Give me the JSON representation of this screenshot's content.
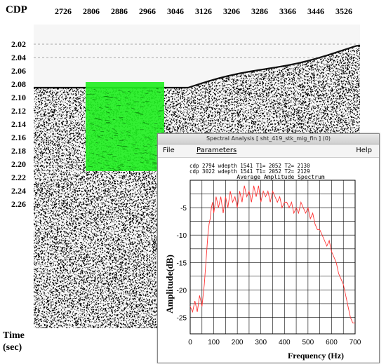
{
  "section": {
    "cdp_label": "CDP",
    "cdp_ticks": [
      "2726",
      "2806",
      "2886",
      "2966",
      "3046",
      "3126",
      "3206",
      "3286",
      "3366",
      "3446",
      "3526"
    ],
    "time_ticks": [
      "2.02",
      "2.04",
      "2.06",
      "2.08",
      "2.10",
      "2.12",
      "2.14",
      "2.16",
      "2.18",
      "2.20",
      "2.22",
      "2.24",
      "2.26"
    ],
    "time_label_line1": "Time",
    "time_label_line2": "(sec)",
    "highlight_color": "#22ee22"
  },
  "dialog": {
    "title": "Spectral Analysis [ sht_419_stk_mig_fin ] (0)",
    "menu": {
      "file": "File",
      "parameters": "Parameters",
      "help": "Help"
    }
  },
  "chart_data": {
    "type": "line",
    "info_line1": "cdp 2794 wdepth 1541 T1= 2052 T2= 2130",
    "info_line2": "cdp 3022 wdepth 1541 T1= 2052 T2= 2129",
    "title": "Average Amplitude Spectrum",
    "xlabel": "Frequency (Hz)",
    "ylabel": "Amplitude(dB)",
    "xlim": [
      0,
      700
    ],
    "ylim": [
      -28,
      0
    ],
    "xticks": [
      0,
      100,
      200,
      300,
      400,
      500,
      600,
      700
    ],
    "yticks": [
      -5,
      -10,
      -15,
      -20,
      -25
    ],
    "grid": true,
    "line_color": "#ff3333",
    "series": [
      {
        "x": [
          0,
          10,
          20,
          30,
          40,
          50,
          60,
          65,
          70,
          75,
          80,
          85,
          90,
          95,
          100,
          110,
          120,
          130,
          140,
          150,
          160,
          170,
          180,
          190,
          200,
          210,
          220,
          230,
          240,
          250,
          260,
          270,
          280,
          290,
          300,
          310,
          320,
          330,
          340,
          350,
          360,
          370,
          380,
          390,
          400,
          410,
          420,
          430,
          440,
          450,
          460,
          470,
          480,
          490,
          500,
          510,
          520,
          530,
          540,
          550,
          560,
          570,
          580,
          590,
          600,
          610,
          620,
          630,
          640,
          650,
          660,
          670,
          680,
          690,
          700
        ],
        "y": [
          -23,
          -24,
          -22,
          -24,
          -21,
          -23,
          -19,
          -16,
          -13,
          -10,
          -8,
          -7,
          -5,
          -4,
          -6,
          -3,
          -5,
          -3,
          -6,
          -3,
          -5,
          -2,
          -4,
          -3,
          -5,
          -2,
          -4,
          -1,
          -3,
          -2,
          -4,
          -1,
          -3,
          -1,
          -4,
          -2,
          -3,
          -2,
          -4,
          -2,
          -3,
          -4,
          -3,
          -5,
          -4,
          -4,
          -5,
          -4,
          -6,
          -5,
          -6,
          -4,
          -5,
          -6,
          -5,
          -7,
          -6,
          -8,
          -9,
          -9,
          -10,
          -11,
          -12,
          -11,
          -13,
          -14,
          -15,
          -17,
          -18,
          -19,
          -21,
          -23,
          -25,
          -26,
          -26
        ]
      }
    ]
  }
}
